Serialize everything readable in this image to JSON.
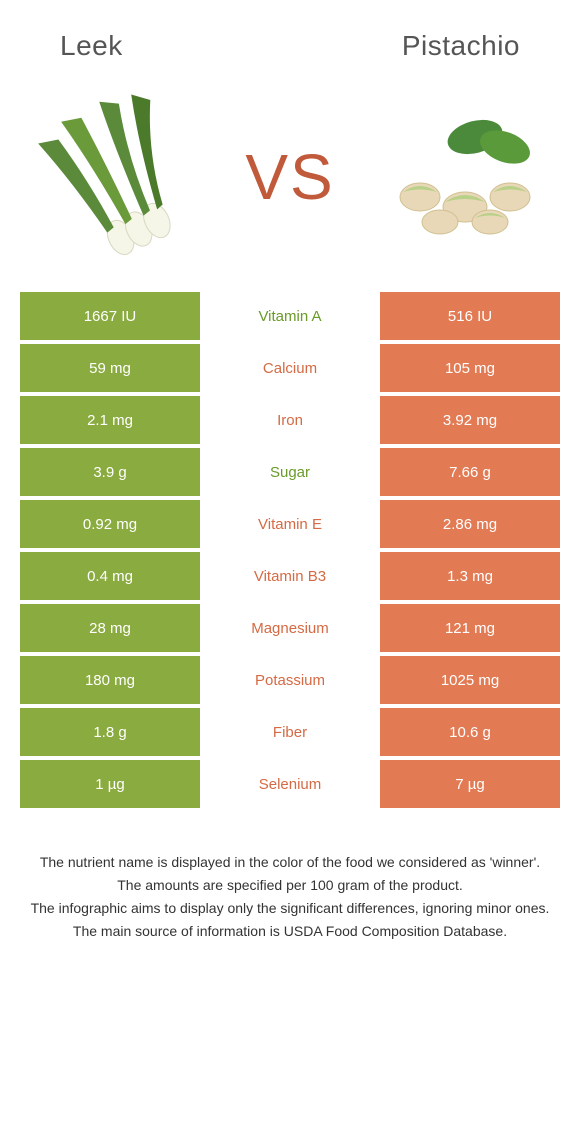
{
  "header": {
    "left_title": "Leek",
    "right_title": "Pistachio",
    "vs": "VS"
  },
  "colors": {
    "green": "#8aab3f",
    "orange": "#e27a54",
    "green_text": "#6a9a2a",
    "orange_text": "#d56a44"
  },
  "rows": [
    {
      "nutrient": "Vitamin A",
      "left": "1667 IU",
      "right": "516 IU",
      "winner": "left"
    },
    {
      "nutrient": "Calcium",
      "left": "59 mg",
      "right": "105 mg",
      "winner": "right"
    },
    {
      "nutrient": "Iron",
      "left": "2.1 mg",
      "right": "3.92 mg",
      "winner": "right"
    },
    {
      "nutrient": "Sugar",
      "left": "3.9 g",
      "right": "7.66 g",
      "winner": "left"
    },
    {
      "nutrient": "Vitamin E",
      "left": "0.92 mg",
      "right": "2.86 mg",
      "winner": "right"
    },
    {
      "nutrient": "Vitamin B3",
      "left": "0.4 mg",
      "right": "1.3 mg",
      "winner": "right"
    },
    {
      "nutrient": "Magnesium",
      "left": "28 mg",
      "right": "121 mg",
      "winner": "right"
    },
    {
      "nutrient": "Potassium",
      "left": "180 mg",
      "right": "1025 mg",
      "winner": "right"
    },
    {
      "nutrient": "Fiber",
      "left": "1.8 g",
      "right": "10.6 g",
      "winner": "right"
    },
    {
      "nutrient": "Selenium",
      "left": "1 µg",
      "right": "7 µg",
      "winner": "right"
    }
  ],
  "footer": {
    "line1": "The nutrient name is displayed in the color of the food we considered as 'winner'.",
    "line2": "The amounts are specified per 100 gram of the product.",
    "line3": "The infographic aims to display only the significant differences, ignoring minor ones.",
    "line4": "The main source of information is USDA Food Composition Database."
  }
}
